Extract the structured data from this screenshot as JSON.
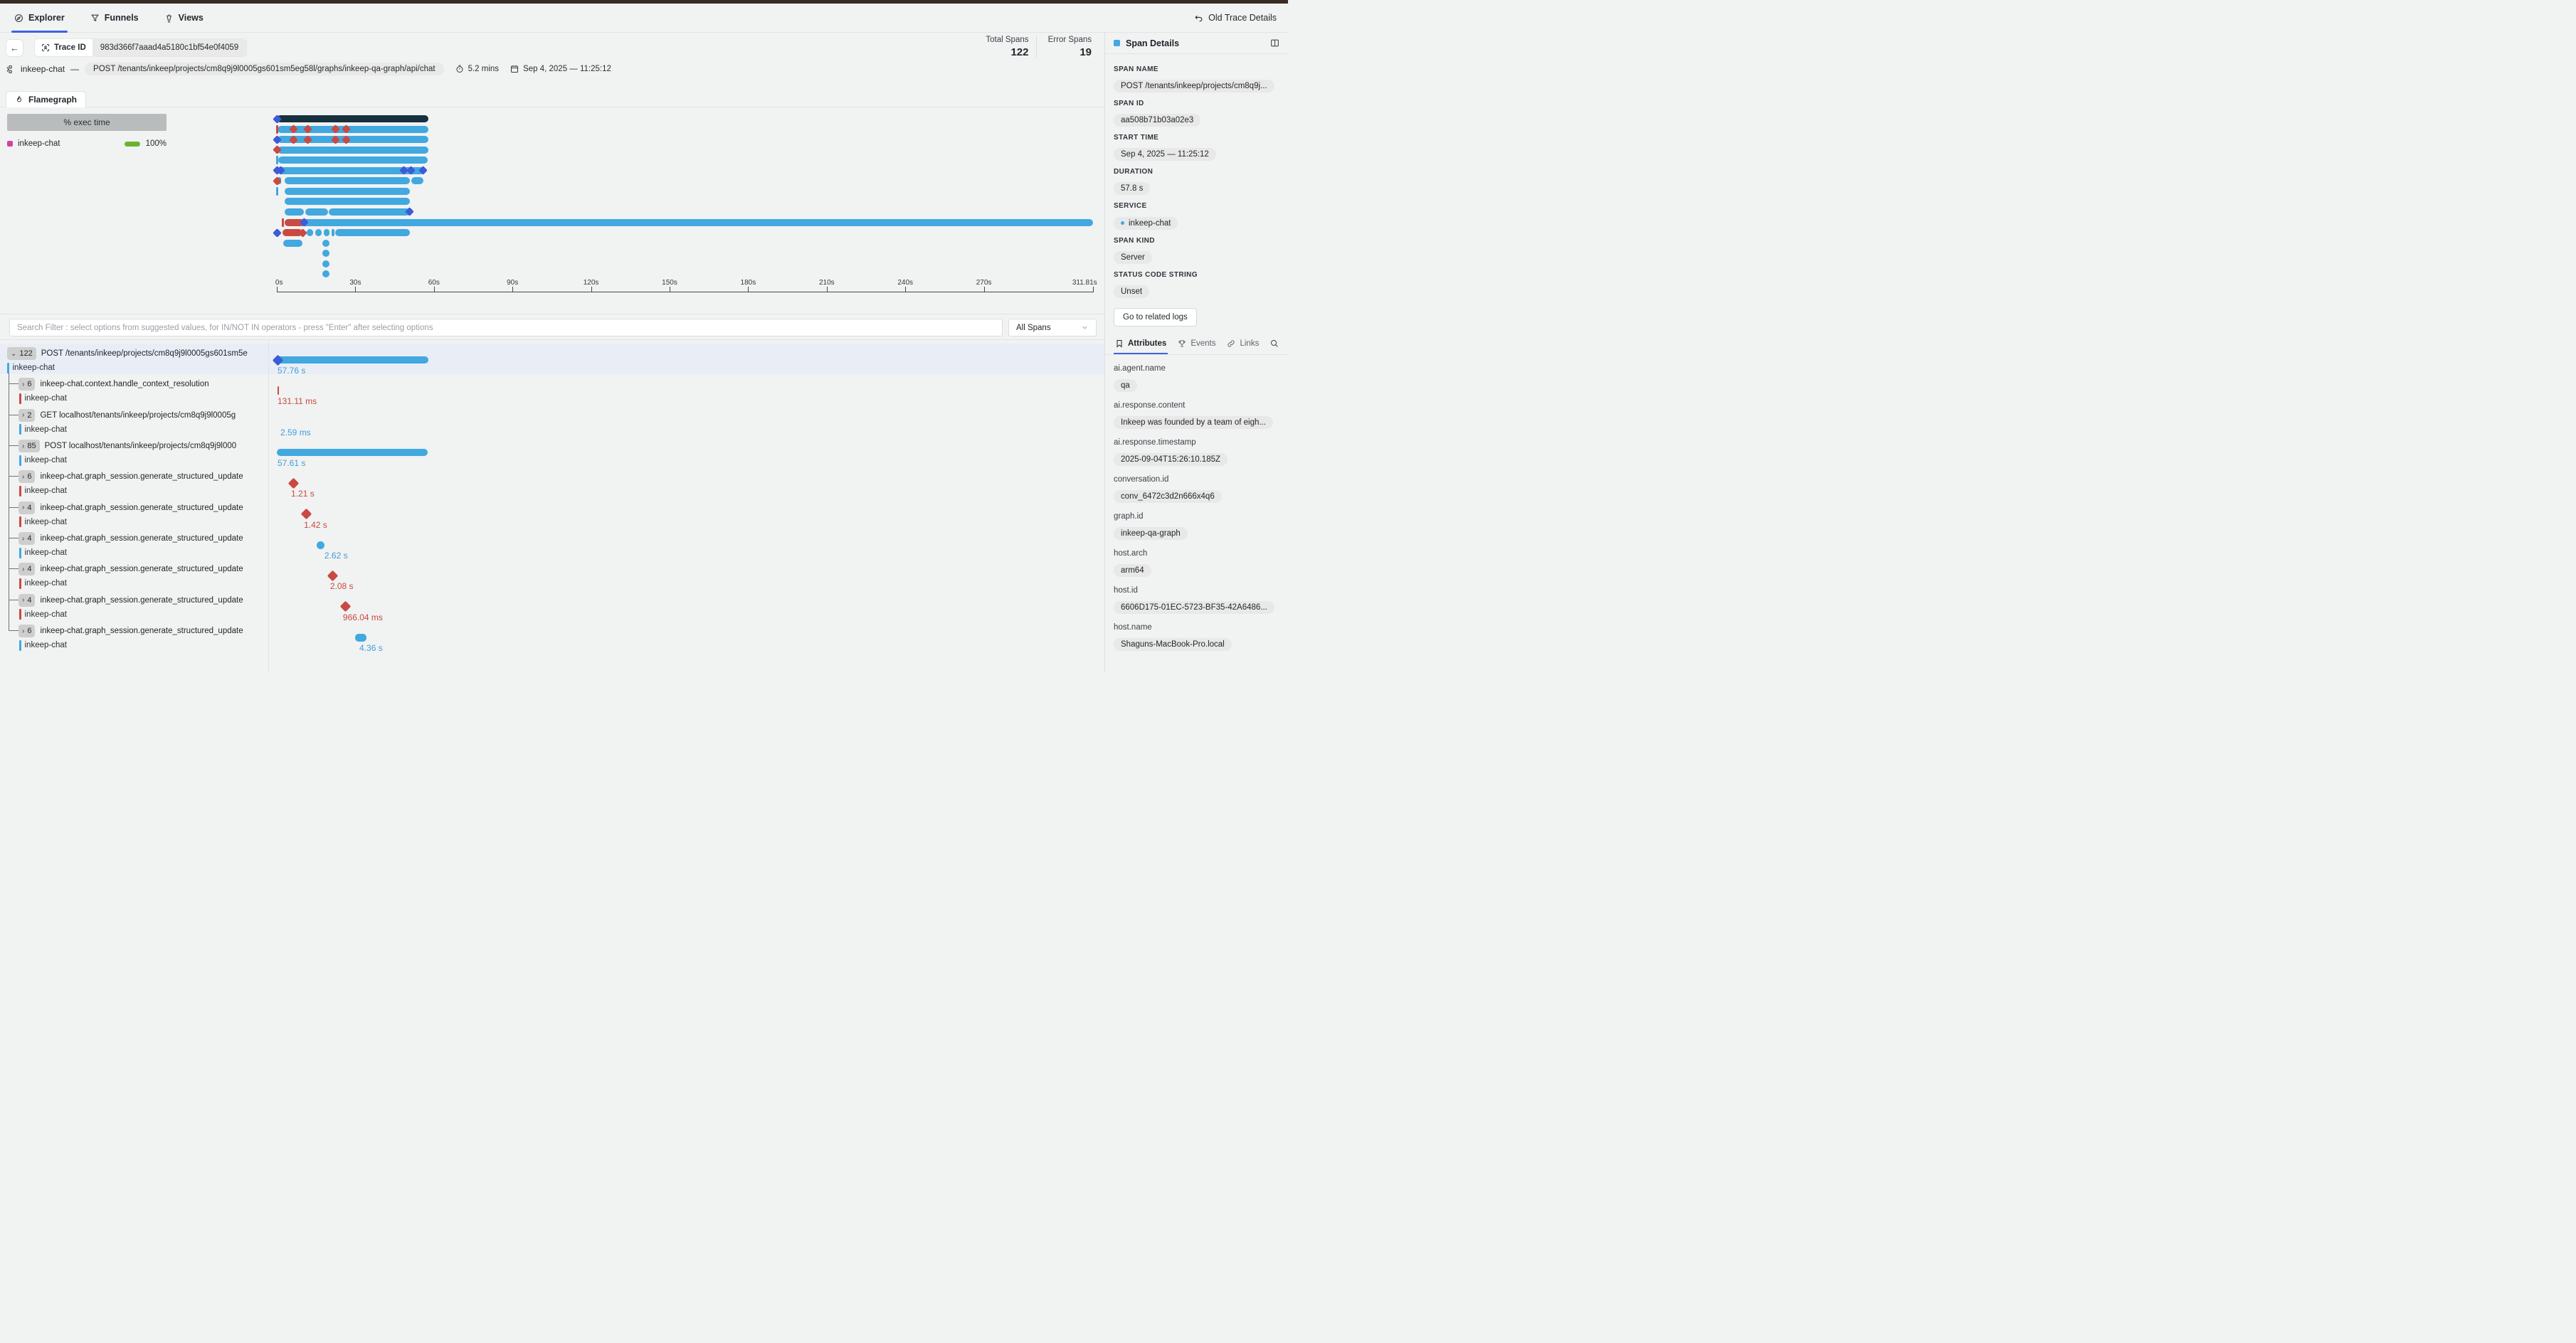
{
  "colors": {
    "accent_blue": "#3e63dd",
    "bar_blue": "#41a8e0",
    "bar_navy": "#16303f",
    "error_red": "#c94a42",
    "marker_blue": "#3c5bd8",
    "green": "#69b42e",
    "pink": "#d6409f"
  },
  "topnav": {
    "tabs": [
      {
        "label": "Explorer",
        "active": true
      },
      {
        "label": "Funnels",
        "active": false
      },
      {
        "label": "Views",
        "active": false
      }
    ],
    "old_trace_details": "Old Trace Details"
  },
  "header": {
    "trace_id_label": "Trace ID",
    "trace_id": "983d366f7aaad4a5180c1bf54e0f4059",
    "service": "inkeep-chat",
    "dash": "—",
    "endpoint": "POST /tenants/inkeep/projects/cm8q9j9l0005gs601sm5eg58l/graphs/inkeep-qa-graph/api/chat",
    "duration": "5.2 mins",
    "timestamp": "Sep 4, 2025 — 11:25:12",
    "total_spans_label": "Total Spans",
    "total_spans": "122",
    "error_spans_label": "Error Spans",
    "error_spans": "19"
  },
  "flamegraph": {
    "tab_label": "Flamegraph",
    "legend": {
      "header": "% exec time",
      "service": "inkeep-chat",
      "percent": "100%"
    },
    "axis": {
      "max_s": 311.81,
      "ticks": [
        {
          "label": "0s",
          "s": 0
        },
        {
          "label": "30s",
          "s": 30
        },
        {
          "label": "60s",
          "s": 60
        },
        {
          "label": "90s",
          "s": 90
        },
        {
          "label": "120s",
          "s": 120
        },
        {
          "label": "150s",
          "s": 150
        },
        {
          "label": "180s",
          "s": 180
        },
        {
          "label": "210s",
          "s": 210
        },
        {
          "label": "240s",
          "s": 240
        },
        {
          "label": "270s",
          "s": 270
        },
        {
          "label": "311.81s",
          "s": 311.81
        }
      ]
    },
    "rows": [
      {
        "segments": [
          {
            "s0": 0,
            "s1": 57.8,
            "c": "navy"
          }
        ],
        "markers": [
          {
            "s": 0,
            "t": "diamond",
            "c": "royal"
          }
        ]
      },
      {
        "segments": [
          {
            "s0": 0.4,
            "s1": 57.8,
            "c": "blue"
          }
        ],
        "markers": [
          {
            "s": 0,
            "t": "tick",
            "c": "red"
          },
          {
            "s": 6.3,
            "t": "diamond",
            "c": "red"
          },
          {
            "s": 11.7,
            "t": "diamond",
            "c": "red"
          },
          {
            "s": 22.3,
            "t": "diamond",
            "c": "red"
          },
          {
            "s": 26.4,
            "t": "diamond",
            "c": "red"
          }
        ]
      },
      {
        "segments": [
          {
            "s0": 0.4,
            "s1": 57.8,
            "c": "blue"
          }
        ],
        "markers": [
          {
            "s": 0,
            "t": "diamond",
            "c": "royal"
          },
          {
            "s": 6.3,
            "t": "diamond",
            "c": "red"
          },
          {
            "s": 11.7,
            "t": "diamond",
            "c": "red"
          },
          {
            "s": 22.3,
            "t": "diamond",
            "c": "red"
          },
          {
            "s": 26.4,
            "t": "diamond",
            "c": "red"
          }
        ]
      },
      {
        "segments": [
          {
            "s0": 0.4,
            "s1": 57.8,
            "c": "blue"
          }
        ],
        "markers": [
          {
            "s": 0,
            "t": "diamond",
            "c": "red"
          }
        ]
      },
      {
        "segments": [
          {
            "s0": 0.6,
            "s1": 57.5,
            "c": "blue"
          }
        ],
        "markers": [
          {
            "s": 0,
            "t": "tick",
            "c": "blue"
          }
        ]
      },
      {
        "segments": [
          {
            "s0": 0.4,
            "s1": 56.2,
            "c": "blue"
          }
        ],
        "markers": [
          {
            "s": 0.2,
            "t": "diamond",
            "c": "royal"
          },
          {
            "s": 1.6,
            "t": "diamond",
            "c": "royal"
          },
          {
            "s": 48.6,
            "t": "diamond",
            "c": "royal"
          },
          {
            "s": 51.3,
            "t": "diamond",
            "c": "royal"
          },
          {
            "s": 55.8,
            "t": "diamond",
            "c": "royal"
          }
        ]
      },
      {
        "segments": [
          {
            "s0": 0.4,
            "s1": 1.6,
            "c": "blue"
          },
          {
            "s0": 3,
            "s1": 50.8,
            "c": "blue"
          },
          {
            "s0": 51.4,
            "s1": 56,
            "c": "blue"
          }
        ],
        "markers": [
          {
            "s": 0,
            "t": "diamond",
            "c": "red"
          }
        ]
      },
      {
        "segments": [
          {
            "s0": 3,
            "s1": 50.8,
            "c": "blue"
          }
        ],
        "markers": [
          {
            "s": 0,
            "t": "tick",
            "c": "blue"
          }
        ]
      },
      {
        "segments": [
          {
            "s0": 3,
            "s1": 50.8,
            "c": "blue"
          }
        ],
        "markers": []
      },
      {
        "segments": [
          {
            "s0": 3,
            "s1": 10.2,
            "c": "blue"
          },
          {
            "s0": 10.9,
            "s1": 19.5,
            "c": "blue"
          },
          {
            "s0": 19.9,
            "s1": 50.8,
            "c": "blue"
          }
        ],
        "markers": [
          {
            "s": 50.8,
            "t": "diamond",
            "c": "royal"
          }
        ]
      },
      {
        "segments": [
          {
            "s0": 2.9,
            "s1": 311.8,
            "c": "blue"
          },
          {
            "s0": 2.9,
            "s1": 10.2,
            "c": "red"
          }
        ],
        "markers": [
          {
            "s": 2.3,
            "t": "tick",
            "c": "red"
          },
          {
            "s": 10.4,
            "t": "diamond",
            "c": "royal"
          }
        ]
      },
      {
        "segments": [
          {
            "s0": 2.2,
            "s1": 9.7,
            "c": "red"
          },
          {
            "s0": 11.5,
            "s1": 13.9,
            "c": "blue"
          },
          {
            "s0": 14.7,
            "s1": 17.2,
            "c": "blue"
          },
          {
            "s0": 17.9,
            "s1": 20.2,
            "c": "blue"
          },
          {
            "s0": 20.8,
            "s1": 21.8,
            "c": "blue"
          },
          {
            "s0": 22.4,
            "s1": 50.8,
            "c": "blue"
          }
        ],
        "markers": [
          {
            "s": 0,
            "t": "diamond",
            "c": "royal"
          },
          {
            "s": 9.9,
            "t": "diamond",
            "c": "red"
          }
        ]
      },
      {
        "segments": [
          {
            "s0": 2.5,
            "s1": 9.8,
            "c": "blue"
          }
        ],
        "markers": [
          {
            "s": 18.8,
            "t": "dot",
            "c": "blue"
          }
        ]
      },
      {
        "segments": [],
        "markers": [
          {
            "s": 18.8,
            "t": "dot",
            "c": "blue"
          }
        ]
      },
      {
        "segments": [],
        "markers": [
          {
            "s": 18.8,
            "t": "dot",
            "c": "blue"
          }
        ]
      },
      {
        "segments": [],
        "markers": [
          {
            "s": 18.8,
            "t": "dot",
            "c": "blue"
          }
        ]
      }
    ]
  },
  "filter": {
    "placeholder": "Search Filter : select options from suggested values, for IN/NOT IN operators - press \"Enter\" after selecting options",
    "scope": "All Spans"
  },
  "spans": {
    "rows": [
      {
        "count": "122",
        "chevron": "down",
        "root": true,
        "selected": true,
        "name": "POST /tenants/inkeep/projects/cm8q9j9l0005gs601sm5e",
        "service": "inkeep-chat",
        "service_color": "blue",
        "duration": "57.76 s",
        "duration_color": "blue",
        "viz": {
          "kind": "bar",
          "s0": 0,
          "s1": 57.76,
          "start_marker": "royal"
        }
      },
      {
        "count": "6",
        "chevron": "right",
        "name": "inkeep-chat.context.handle_context_resolution",
        "service": "inkeep-chat",
        "service_color": "red",
        "duration": "131.11 ms",
        "duration_color": "red",
        "viz": {
          "kind": "tick",
          "s0": 0,
          "c": "red"
        }
      },
      {
        "count": "2",
        "chevron": "right",
        "name": "GET localhost/tenants/inkeep/projects/cm8q9j9l0005g",
        "service": "inkeep-chat",
        "service_color": "blue",
        "duration": "2.59 ms",
        "duration_color": "blue",
        "viz": {
          "kind": "none",
          "s0": 0
        }
      },
      {
        "count": "85",
        "chevron": "right",
        "name": "POST localhost/tenants/inkeep/projects/cm8q9j9l000",
        "service": "inkeep-chat",
        "service_color": "blue",
        "duration": "57.61 s",
        "duration_color": "blue",
        "viz": {
          "kind": "bar",
          "s0": 0,
          "s1": 57.61
        }
      },
      {
        "count": "6",
        "chevron": "right",
        "name": "inkeep-chat.graph_session.generate_structured_update",
        "service": "inkeep-chat",
        "service_color": "red",
        "duration": "1.21 s",
        "duration_color": "red",
        "viz": {
          "kind": "diamond",
          "s0": 4.9,
          "c": "red"
        }
      },
      {
        "count": "4",
        "chevron": "right",
        "name": "inkeep-chat.graph_session.generate_structured_update",
        "service": "inkeep-chat",
        "service_color": "red",
        "duration": "1.42 s",
        "duration_color": "red",
        "viz": {
          "kind": "diamond",
          "s0": 9.8,
          "c": "red"
        }
      },
      {
        "count": "4",
        "chevron": "right",
        "name": "inkeep-chat.graph_session.generate_structured_update",
        "service": "inkeep-chat",
        "service_color": "blue",
        "duration": "2.62 s",
        "duration_color": "blue",
        "viz": {
          "kind": "dot",
          "s0": 15.2,
          "c": "blue"
        }
      },
      {
        "count": "4",
        "chevron": "right",
        "name": "inkeep-chat.graph_session.generate_structured_update",
        "service": "inkeep-chat",
        "service_color": "red",
        "duration": "2.08 s",
        "duration_color": "red",
        "viz": {
          "kind": "diamond",
          "s0": 19.8,
          "c": "red"
        }
      },
      {
        "count": "4",
        "chevron": "right",
        "name": "inkeep-chat.graph_session.generate_structured_update",
        "service": "inkeep-chat",
        "service_color": "red",
        "duration": "966.04 ms",
        "duration_color": "red",
        "viz": {
          "kind": "diamond",
          "s0": 24.7,
          "c": "red"
        }
      },
      {
        "count": "6",
        "chevron": "right",
        "name": "inkeep-chat.graph_session.generate_structured_update",
        "service": "inkeep-chat",
        "service_color": "blue",
        "duration": "4.36 s",
        "duration_color": "blue",
        "viz": {
          "kind": "pill",
          "s0": 29.9,
          "s1": 34.26,
          "c": "blue"
        }
      }
    ]
  },
  "details": {
    "title": "Span Details",
    "fields": [
      {
        "label": "SPAN NAME",
        "value": "POST /tenants/inkeep/projects/cm8q9j..."
      },
      {
        "label": "SPAN ID",
        "value": "aa508b71b03a02e3"
      },
      {
        "label": "START TIME",
        "value": "Sep 4, 2025 — 11:25:12"
      },
      {
        "label": "DURATION",
        "value": "57.8 s"
      },
      {
        "label": "SERVICE",
        "value": "inkeep-chat",
        "dot": true
      },
      {
        "label": "SPAN KIND",
        "value": "Server"
      },
      {
        "label": "STATUS CODE STRING",
        "value": "Unset"
      }
    ],
    "logs_button": "Go to related logs",
    "tabs": [
      {
        "label": "Attributes",
        "active": true
      },
      {
        "label": "Events",
        "active": false
      },
      {
        "label": "Links",
        "active": false
      }
    ],
    "attributes": [
      {
        "key": "ai.agent.name",
        "value": "qa"
      },
      {
        "key": "ai.response.content",
        "value": "Inkeep was founded by a team of eigh..."
      },
      {
        "key": "ai.response.timestamp",
        "value": "2025-09-04T15:26:10.185Z"
      },
      {
        "key": "conversation.id",
        "value": "conv_6472c3d2n666x4q6"
      },
      {
        "key": "graph.id",
        "value": "inkeep-qa-graph"
      },
      {
        "key": "host.arch",
        "value": "arm64"
      },
      {
        "key": "host.id",
        "value": "6606D175-01EC-5723-BF35-42A6486..."
      },
      {
        "key": "host.name",
        "value": "Shaguns-MacBook-Pro.local"
      }
    ]
  }
}
